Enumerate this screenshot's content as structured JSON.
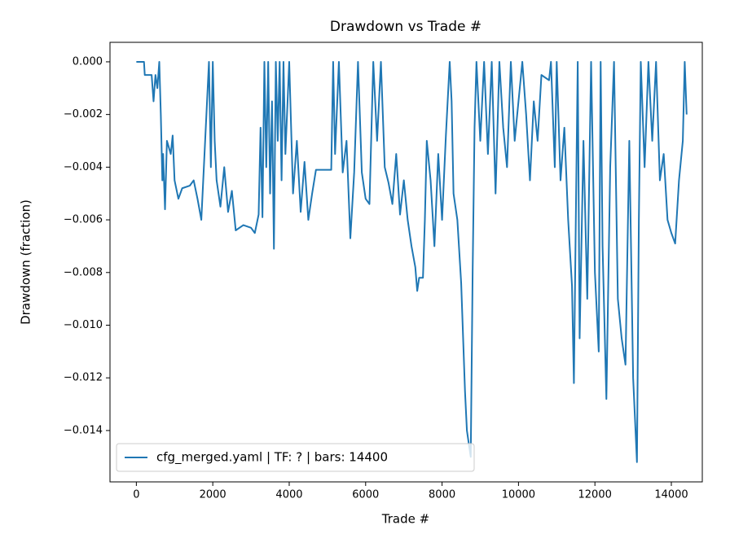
{
  "chart_data": {
    "type": "line",
    "title": "Drawdown vs Trade #",
    "x_label": "Trade #",
    "y_label": "Drawdown (fraction)",
    "xlim": [
      -690,
      14810
    ],
    "ylim": [
      -0.01595,
      0.00074
    ],
    "xticks": [
      0,
      2000,
      4000,
      6000,
      8000,
      10000,
      12000,
      14000
    ],
    "yticks": [
      {
        "value": 0,
        "label": "0.000"
      },
      {
        "value": -0.002,
        "label": "−0.002"
      },
      {
        "value": -0.004,
        "label": "−0.004"
      },
      {
        "value": -0.006,
        "label": "−0.006"
      },
      {
        "value": -0.008,
        "label": "−0.008"
      },
      {
        "value": -0.01,
        "label": "−0.010"
      },
      {
        "value": -0.012,
        "label": "−0.012"
      },
      {
        "value": -0.014,
        "label": "−0.014"
      }
    ],
    "legend": "lower left",
    "grid": false,
    "x": [
      0,
      200,
      220,
      400,
      450,
      500,
      550,
      600,
      640,
      680,
      700,
      750,
      800,
      900,
      950,
      1000,
      1100,
      1200,
      1400,
      1500,
      1600,
      1700,
      1800,
      1850,
      1900,
      1950,
      2000,
      2050,
      2100,
      2200,
      2300,
      2400,
      2500,
      2600,
      2800,
      3000,
      3100,
      3200,
      3250,
      3300,
      3350,
      3400,
      3450,
      3500,
      3550,
      3600,
      3650,
      3700,
      3750,
      3800,
      3850,
      3900,
      4000,
      4100,
      4200,
      4300,
      4400,
      4500,
      4600,
      4700,
      5100,
      5150,
      5200,
      5300,
      5400,
      5500,
      5600,
      5700,
      5800,
      5900,
      6000,
      6100,
      6200,
      6300,
      6400,
      6500,
      6600,
      6700,
      6800,
      6900,
      7000,
      7100,
      7200,
      7300,
      7350,
      7400,
      7500,
      7550,
      7600,
      7700,
      7800,
      7900,
      8000,
      8100,
      8200,
      8250,
      8300,
      8400,
      8500,
      8600,
      8650,
      8700,
      8750,
      8800,
      8850,
      8900,
      9000,
      9100,
      9200,
      9300,
      9400,
      9500,
      9600,
      9700,
      9800,
      9900,
      10000,
      10100,
      10200,
      10300,
      10400,
      10500,
      10600,
      10800,
      10850,
      10950,
      11000,
      11100,
      11200,
      11300,
      11400,
      11450,
      11500,
      11550,
      11600,
      11700,
      11800,
      11900,
      12000,
      12100,
      12150,
      12200,
      12300,
      12400,
      12500,
      12600,
      12700,
      12800,
      12900,
      13000,
      13100,
      13150,
      13200,
      13300,
      13400,
      13500,
      13600,
      13700,
      13800,
      13900,
      14000,
      14100,
      14200,
      14300,
      14350,
      14400
    ],
    "series": [
      {
        "name": "cfg_merged.yaml | TF: ? | bars: 14400",
        "color": "#1f77b4",
        "values": [
          0,
          0,
          -0.0005,
          -0.0005,
          -0.0015,
          -0.0005,
          -0.001,
          0,
          -0.002,
          -0.0045,
          -0.0035,
          -0.0056,
          -0.003,
          -0.0035,
          -0.0028,
          -0.0045,
          -0.0052,
          -0.0048,
          -0.0047,
          -0.0045,
          -0.0052,
          -0.006,
          -0.003,
          -0.0015,
          0,
          -0.004,
          0,
          -0.003,
          -0.0045,
          -0.0055,
          -0.004,
          -0.0057,
          -0.0049,
          -0.0064,
          -0.0062,
          -0.0063,
          -0.0065,
          -0.0058,
          -0.0025,
          -0.0059,
          0,
          -0.004,
          0,
          -0.005,
          -0.0015,
          -0.0071,
          0,
          -0.003,
          0,
          -0.0045,
          0,
          -0.0035,
          0,
          -0.005,
          -0.003,
          -0.0057,
          -0.0038,
          -0.006,
          -0.005,
          -0.0041,
          -0.0041,
          0,
          -0.0035,
          0,
          -0.0042,
          -0.003,
          -0.0067,
          -0.0042,
          0,
          -0.0042,
          -0.0052,
          -0.0054,
          0,
          -0.003,
          0,
          -0.004,
          -0.0046,
          -0.0054,
          -0.0035,
          -0.0058,
          -0.0045,
          -0.006,
          -0.007,
          -0.0078,
          -0.0087,
          -0.0082,
          -0.0082,
          -0.006,
          -0.003,
          -0.0045,
          -0.007,
          -0.0035,
          -0.006,
          -0.0028,
          0,
          -0.0015,
          -0.005,
          -0.006,
          -0.0084,
          -0.0125,
          -0.014,
          -0.0145,
          -0.015,
          -0.008,
          -0.0025,
          0,
          -0.003,
          0,
          -0.0035,
          0,
          -0.005,
          0,
          -0.0025,
          -0.004,
          0,
          -0.003,
          -0.0015,
          0,
          -0.002,
          -0.0045,
          -0.0015,
          -0.003,
          -0.0005,
          -0.0007,
          0,
          -0.004,
          0,
          -0.0045,
          -0.0025,
          -0.006,
          -0.0085,
          -0.0122,
          -0.006,
          0,
          -0.0105,
          -0.003,
          -0.009,
          0,
          -0.008,
          -0.011,
          0,
          -0.007,
          -0.0128,
          -0.004,
          0,
          -0.009,
          -0.0105,
          -0.0115,
          -0.003,
          -0.012,
          -0.0152,
          -0.006,
          0,
          -0.004,
          0,
          -0.003,
          0,
          -0.0045,
          -0.0035,
          -0.006,
          -0.0065,
          -0.0069,
          -0.0045,
          -0.003,
          0,
          -0.002
        ]
      }
    ]
  }
}
